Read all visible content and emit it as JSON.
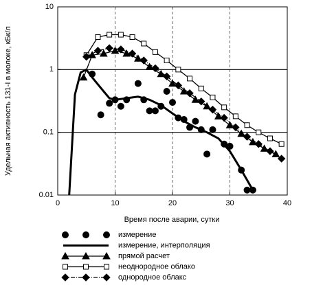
{
  "chart_data": {
    "type": "line",
    "xlabel": "Время после аварии, сутки",
    "ylabel": "Удельная активность 131-I в молоке, кБк/л",
    "xlim": [
      0,
      40
    ],
    "xticks": [
      0,
      10,
      20,
      30,
      40
    ],
    "ylim": [
      0.01,
      10
    ],
    "yticks": [
      0.01,
      0.1,
      1,
      10
    ],
    "log_y": true,
    "grid": true,
    "series": [
      {
        "name": "измерение",
        "color": "#000000",
        "marker": "circle",
        "line": "none",
        "x": [
          6,
          7.5,
          9,
          10,
          11,
          12,
          14,
          15,
          16,
          17,
          18,
          19,
          20,
          21,
          22,
          23,
          24,
          25,
          26,
          27,
          29,
          30,
          32,
          33,
          34
        ],
        "values": [
          0.85,
          0.19,
          0.29,
          0.33,
          0.26,
          0.33,
          0.6,
          0.33,
          0.22,
          0.22,
          0.26,
          0.45,
          0.3,
          0.17,
          0.16,
          0.12,
          0.15,
          0.11,
          0.045,
          0.11,
          0.065,
          0.06,
          0.025,
          0.012,
          0.012
        ]
      },
      {
        "name": "измерение, интерполяция",
        "color": "#000000",
        "marker": "none",
        "line": "thick",
        "x": [
          2,
          3,
          4,
          5,
          6,
          8,
          9,
          10,
          12,
          14,
          16,
          18,
          20,
          22,
          24,
          26,
          28,
          30,
          32,
          34
        ],
        "values": [
          0.01,
          0.4,
          0.9,
          1.0,
          0.75,
          0.45,
          0.35,
          0.33,
          0.35,
          0.37,
          0.33,
          0.27,
          0.2,
          0.15,
          0.12,
          0.1,
          0.08,
          0.05,
          0.025,
          0.012
        ]
      },
      {
        "name": "прямой расчет",
        "color": "#000000",
        "marker": "triangle",
        "line": "solid",
        "x": [
          4.5,
          6,
          8,
          10,
          12,
          14,
          16,
          18,
          20,
          22,
          24,
          26,
          28,
          30,
          32,
          34,
          36,
          38
        ],
        "values": [
          0.75,
          1.7,
          1.8,
          2.0,
          1.8,
          1.5,
          1.1,
          0.85,
          0.6,
          0.45,
          0.33,
          0.26,
          0.18,
          0.13,
          0.095,
          0.07,
          0.055,
          0.045
        ]
      },
      {
        "name": "неоднородное облако",
        "color": "#000000",
        "marker": "square",
        "line": "solid",
        "x": [
          5,
          7,
          9,
          11,
          13,
          15,
          17,
          19,
          21,
          23,
          25,
          27,
          29,
          31,
          33,
          35,
          37,
          39
        ],
        "values": [
          1.7,
          3.3,
          3.6,
          3.6,
          3.3,
          2.6,
          1.9,
          1.4,
          1.0,
          0.72,
          0.5,
          0.36,
          0.25,
          0.18,
          0.13,
          0.1,
          0.08,
          0.065
        ]
      },
      {
        "name": "однородное облакс",
        "color": "#000000",
        "marker": "diamond",
        "line": "dashdot",
        "x": [
          5,
          7,
          9,
          11,
          13,
          15,
          17,
          19,
          21,
          23,
          25,
          27,
          29,
          31,
          33,
          35,
          37,
          39
        ],
        "values": [
          1.6,
          2.0,
          2.2,
          2.1,
          1.8,
          1.4,
          1.05,
          0.78,
          0.56,
          0.42,
          0.31,
          0.23,
          0.17,
          0.12,
          0.085,
          0.065,
          0.05,
          0.038
        ]
      }
    ]
  }
}
